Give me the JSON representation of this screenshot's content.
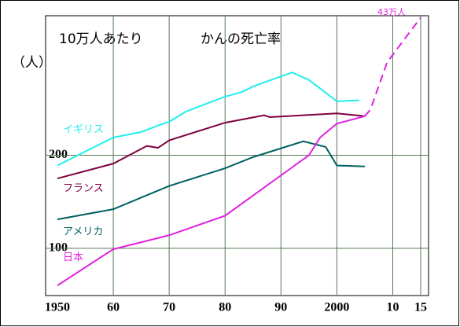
{
  "chart_data": {
    "type": "line",
    "title": "10万人あたり",
    "subtitle": "かんの死亡率",
    "y_unit": "（人）",
    "annotation": "43万人",
    "xlim": [
      1950,
      2015
    ],
    "ylim": [
      50,
      350
    ],
    "xticks": [
      1950,
      {
        "value": 1960,
        "label": "60"
      },
      {
        "value": 1970,
        "label": "70"
      },
      {
        "value": 1980,
        "label": "80"
      },
      {
        "value": 1990,
        "label": "90"
      },
      2000,
      {
        "value": 2010,
        "label": "10"
      },
      {
        "value": 2015,
        "label": "15"
      }
    ],
    "yticks": [
      100,
      200
    ],
    "grid": true,
    "series": [
      {
        "name": "イギリス",
        "color": "#22eeee",
        "x": [
          1950,
          1955,
          1960,
          1965,
          1968,
          1970,
          1973,
          1980,
          1983,
          1985,
          1992,
          1995,
          2000,
          2004
        ],
        "values": [
          189,
          204,
          219,
          225,
          232,
          236,
          247,
          263,
          268,
          274,
          289,
          281,
          258,
          259
        ]
      },
      {
        "name": "フランス",
        "color": "#800040",
        "x": [
          1950,
          1960,
          1966,
          1968,
          1970,
          1980,
          1987,
          1988,
          2000,
          2005
        ],
        "values": [
          175,
          191,
          210,
          208,
          216,
          235,
          243,
          241,
          245,
          242
        ]
      },
      {
        "name": "アメリカ",
        "color": "#006060",
        "x": [
          1950,
          1960,
          1970,
          1980,
          1985,
          1994,
          1998,
          2000,
          2005
        ],
        "values": [
          131,
          142,
          167,
          186,
          198,
          215,
          209,
          189,
          188
        ]
      },
      {
        "name": "日本",
        "color": "#e020e0",
        "x": [
          1950,
          1960,
          1970,
          1980,
          1995,
          1997,
          2000,
          2005
        ],
        "values": [
          60,
          99,
          114,
          135,
          200,
          219,
          234,
          242
        ]
      },
      {
        "color": "#e020e0",
        "dashed": true,
        "x": [
          2005,
          2006,
          2009,
          2015
        ],
        "values": [
          242,
          249,
          300,
          348
        ]
      }
    ]
  }
}
